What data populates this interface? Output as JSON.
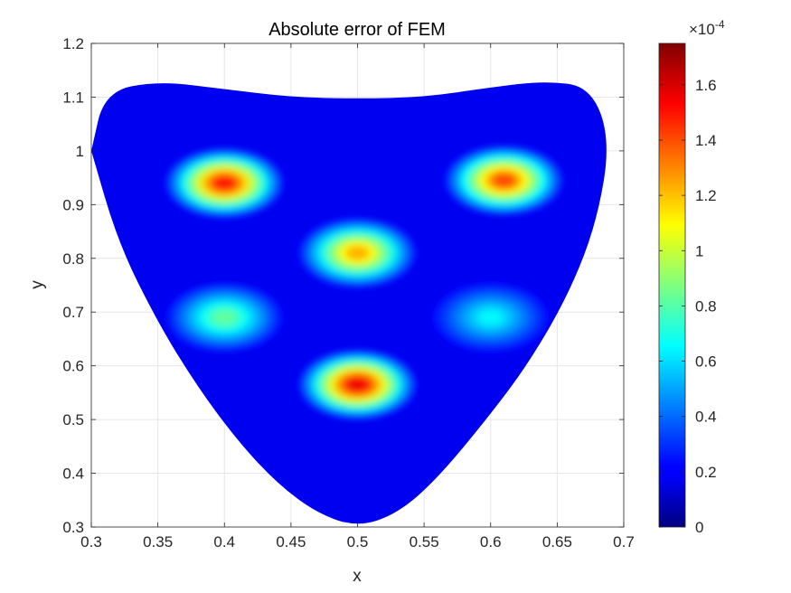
{
  "chart_data": {
    "type": "heatmap",
    "title": "Absolute error of FEM",
    "xlabel": "x",
    "ylabel": "y",
    "xlim": [
      0.3,
      0.7
    ],
    "ylim": [
      0.3,
      1.2
    ],
    "xticks": [
      "0.3",
      "0.35",
      "0.4",
      "0.45",
      "0.5",
      "0.55",
      "0.6",
      "0.65",
      "0.7"
    ],
    "yticks": [
      "0.3",
      "0.4",
      "0.5",
      "0.6",
      "0.7",
      "0.8",
      "0.9",
      "1",
      "1.1",
      "1.2"
    ],
    "grid": true,
    "colormap": "jet",
    "colorbar": {
      "range": [
        0,
        0.000175
      ],
      "ticks": [
        "0",
        "0.2",
        "0.4",
        "0.6",
        "0.8",
        "1",
        "1.2",
        "1.4",
        "1.6"
      ],
      "exponent_label": "×10",
      "exponent": "-4"
    },
    "domain_boundary": {
      "top": [
        [
          0.3,
          1.0
        ],
        [
          0.31,
          1.11
        ],
        [
          0.35,
          1.13
        ],
        [
          0.4,
          1.115
        ],
        [
          0.45,
          1.1
        ],
        [
          0.5,
          1.097
        ],
        [
          0.55,
          1.1
        ],
        [
          0.6,
          1.118
        ],
        [
          0.64,
          1.13
        ],
        [
          0.675,
          1.12
        ],
        [
          0.69,
          1.02
        ]
      ],
      "bottom": [
        [
          0.69,
          1.02
        ],
        [
          0.68,
          0.87
        ],
        [
          0.66,
          0.74
        ],
        [
          0.63,
          0.61
        ],
        [
          0.6,
          0.51
        ],
        [
          0.56,
          0.39
        ],
        [
          0.53,
          0.325
        ],
        [
          0.5,
          0.3
        ],
        [
          0.47,
          0.325
        ],
        [
          0.44,
          0.38
        ],
        [
          0.41,
          0.46
        ],
        [
          0.38,
          0.56
        ],
        [
          0.35,
          0.68
        ],
        [
          0.32,
          0.83
        ],
        [
          0.3,
          1.0
        ]
      ]
    },
    "error_peaks": [
      {
        "x": 0.4,
        "y": 0.94,
        "value": 0.000165
      },
      {
        "x": 0.61,
        "y": 0.945,
        "value": 0.000155
      },
      {
        "x": 0.5,
        "y": 0.81,
        "value": 0.000135
      },
      {
        "x": 0.5,
        "y": 0.565,
        "value": 0.000172
      },
      {
        "x": 0.4,
        "y": 0.69,
        "value": 9e-05
      },
      {
        "x": 0.6,
        "y": 0.69,
        "value": 7e-05
      }
    ]
  }
}
